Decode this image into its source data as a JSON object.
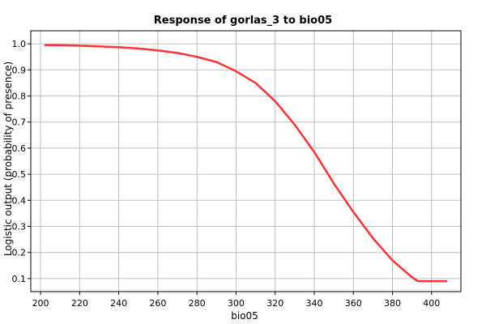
{
  "chart_data": {
    "type": "line",
    "title": "Response of gorlas_3 to bio05",
    "xlabel": "bio05",
    "ylabel": "Logistic output (probability of presence)",
    "xlim": [
      195,
      415
    ],
    "ylim": [
      0.05,
      1.05
    ],
    "x_ticks": [
      "200",
      "220",
      "240",
      "260",
      "280",
      "300",
      "320",
      "340",
      "360",
      "380",
      "400"
    ],
    "y_ticks": [
      "0.1",
      "0.2",
      "0.3",
      "0.4",
      "0.5",
      "0.6",
      "0.7",
      "0.8",
      "0.9",
      "1.0"
    ],
    "grid": true,
    "line_color": "#ff3333",
    "series": [
      {
        "x": [
          202,
          210,
          220,
          230,
          240,
          250,
          260,
          270,
          280,
          290,
          300,
          310,
          320,
          330,
          340,
          350,
          360,
          370,
          380,
          390,
          393,
          400,
          408
        ],
        "y": [
          0.995,
          0.995,
          0.993,
          0.99,
          0.987,
          0.982,
          0.975,
          0.965,
          0.95,
          0.93,
          0.895,
          0.85,
          0.78,
          0.69,
          0.585,
          0.465,
          0.355,
          0.255,
          0.17,
          0.105,
          0.09,
          0.09,
          0.09
        ]
      }
    ]
  }
}
